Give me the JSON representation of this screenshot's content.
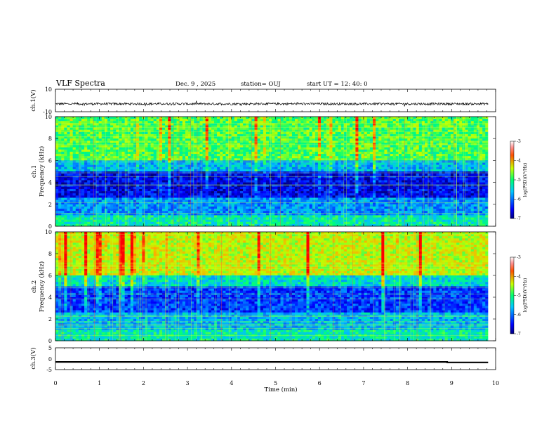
{
  "header": {
    "title": "VLF Spectra",
    "date": "Dec. 9  , 2025",
    "station": "station= OUJ",
    "start": "start  UT  =   12: 40: 0"
  },
  "chart_data": [
    {
      "type": "line",
      "name": "ch1-waveform",
      "ylabel": "ch.1(V)",
      "ylim": [
        -10,
        10
      ],
      "yticks": [
        "10",
        "-10"
      ],
      "xlim": [
        0,
        10
      ],
      "baseline": -3,
      "noise_amplitude": 1
    },
    {
      "type": "heatmap",
      "name": "ch1-spectrogram",
      "ylabel": "ch.1\nFrequency (kHz)",
      "ylabel_top": "ch.1",
      "ylabel_bottom": "Frequency  (kHz)",
      "ylim": [
        0,
        10
      ],
      "yticks": [
        "0",
        "2",
        "4",
        "6",
        "8",
        "10"
      ],
      "xlim": [
        0,
        10
      ],
      "colorbar": {
        "label": "log(PSD)(V²/Hz)",
        "ticks": [
          "-3",
          "-4",
          "-5",
          "-6",
          "-7"
        ],
        "range": [
          -7,
          -3
        ]
      }
    },
    {
      "type": "heatmap",
      "name": "ch2-spectrogram",
      "ylabel_top": "ch.2",
      "ylabel_bottom": "Frequency  (kHz)",
      "ylim": [
        0,
        10
      ],
      "yticks": [
        "0",
        "2",
        "4",
        "6",
        "8",
        "10"
      ],
      "xlim": [
        0,
        10
      ],
      "colorbar": {
        "label": "log(PSD)(V²/Hz)",
        "ticks": [
          "-3",
          "-4",
          "-5",
          "-6",
          "-7"
        ],
        "range": [
          -7,
          -3
        ]
      }
    },
    {
      "type": "line",
      "name": "ch3-level",
      "ylabel": "ch.3(V)",
      "ylim": [
        -5,
        5
      ],
      "yticks": [
        "5",
        "0",
        "-5"
      ],
      "xlim": [
        0,
        10
      ],
      "x": [
        0,
        8.9,
        8.9,
        9.83
      ],
      "y": [
        -1.5,
        -1.5,
        -1.7,
        -1.7
      ]
    }
  ],
  "xaxis": {
    "label": "Time  (min)",
    "ticks": [
      "0",
      "1",
      "2",
      "3",
      "4",
      "5",
      "6",
      "7",
      "8",
      "9",
      "10"
    ]
  },
  "colors": {
    "stroke": "#000000",
    "background": "#ffffff"
  }
}
